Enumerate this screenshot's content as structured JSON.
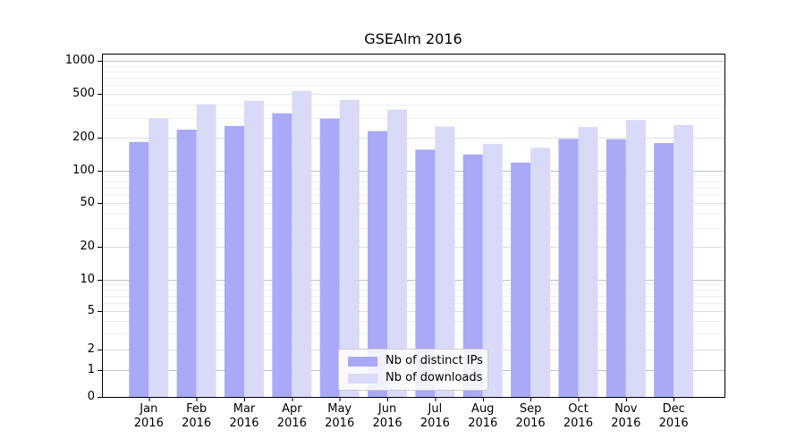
{
  "chart_data": {
    "type": "bar",
    "title": "GSEAlm 2016",
    "year": "2016",
    "categories": [
      "Jan",
      "Feb",
      "Mar",
      "Apr",
      "May",
      "Jun",
      "Jul",
      "Aug",
      "Sep",
      "Oct",
      "Nov",
      "Dec"
    ],
    "series": [
      {
        "name": "Nb of distinct IPs",
        "color": "#a9a9f7",
        "values": [
          182,
          236,
          255,
          333,
          298,
          229,
          155,
          140,
          118,
          194,
          193,
          178
        ]
      },
      {
        "name": "Nb of downloads",
        "color": "#d9d9f8",
        "values": [
          300,
          402,
          434,
          534,
          442,
          360,
          252,
          175,
          161,
          249,
          289,
          260
        ]
      }
    ],
    "xlabel": "",
    "ylabel": "",
    "yscale": "asinh-log (log-like scale that includes 0)",
    "ylim": [
      0,
      1000
    ],
    "yticks_labeled": [
      0,
      1,
      2,
      5,
      10,
      20,
      50,
      100,
      200,
      500,
      1000
    ],
    "yticks_minor": [
      3,
      4,
      6,
      7,
      8,
      9,
      30,
      40,
      60,
      70,
      80,
      90,
      300,
      400,
      600,
      700,
      800,
      900
    ],
    "grid": "horizontal major+minor, grid behind bars",
    "legend_position": "lower center inside axes"
  },
  "legend": {
    "items": [
      {
        "label": "Nb of distinct IPs",
        "color": "#a9a9f7"
      },
      {
        "label": "Nb of downloads",
        "color": "#d9d9f8"
      }
    ]
  },
  "colors": {
    "grid_major": "#c2c2c2",
    "grid_labeled": "#dedede",
    "grid_minor": "#efefef",
    "spine": "#000000",
    "background": "#ffffff"
  }
}
